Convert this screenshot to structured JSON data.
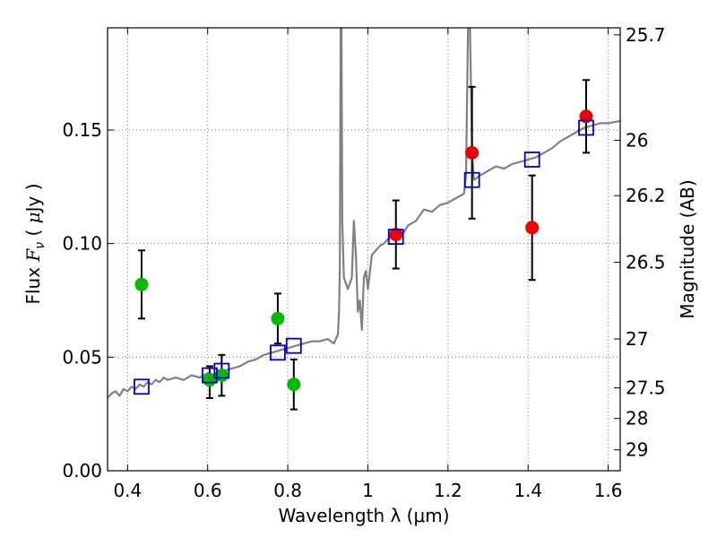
{
  "chart_data": {
    "type": "scatter",
    "xlabel": "Wavelength  λ (μm)",
    "ylabel": "Flux  F_ν  ( μJy )",
    "ylabel_right": "Magnitude (AB)",
    "xlim": [
      0.35,
      1.63
    ],
    "ylim": [
      0.0,
      0.195
    ],
    "grid": true,
    "x_ticks": [
      0.4,
      0.6,
      0.8,
      1.0,
      1.2,
      1.4,
      1.6
    ],
    "x_tick_labels": [
      "0.4",
      "0.6",
      "0.8",
      "1",
      "1.2",
      "1.4",
      "1.6"
    ],
    "y_ticks": [
      0.0,
      0.05,
      0.1,
      0.15
    ],
    "y_tick_labels": [
      "0.00",
      "0.05",
      "0.10",
      "0.15"
    ],
    "right_ticks": [
      {
        "label": "25.7",
        "flux": 0.1919
      },
      {
        "label": "26",
        "flux": 0.1455
      },
      {
        "label": "26.2",
        "flux": 0.1211
      },
      {
        "label": "26.5",
        "flux": 0.0918
      },
      {
        "label": "27",
        "flux": 0.058
      },
      {
        "label": "27.5",
        "flux": 0.0365
      },
      {
        "label": "28",
        "flux": 0.023
      },
      {
        "label": "29",
        "flux": 0.0092
      }
    ],
    "colors": {
      "model": "#808080",
      "model_flux_marker": "#0000cc",
      "green": "#00bb00",
      "red": "#ee0000",
      "errorbar": "#000000",
      "grid": "#777777"
    },
    "series": [
      {
        "marker": "circle",
        "color": "#00bb00",
        "points": [
          {
            "x": 0.435,
            "y": 0.082,
            "yerr": [
              0.015,
              0.015
            ]
          },
          {
            "x": 0.605,
            "y": 0.04,
            "yerr": [
              0.008,
              0.006
            ]
          },
          {
            "x": 0.635,
            "y": 0.042,
            "yerr": [
              0.009,
              0.009
            ]
          },
          {
            "x": 0.775,
            "y": 0.067,
            "yerr": [
              0.011,
              0.011
            ]
          },
          {
            "x": 0.815,
            "y": 0.038,
            "yerr": [
              0.011,
              0.011
            ]
          }
        ]
      },
      {
        "marker": "circle",
        "color": "#ee0000",
        "points": [
          {
            "x": 1.07,
            "y": 0.104,
            "yerr": [
              0.015,
              0.015
            ]
          },
          {
            "x": 1.26,
            "y": 0.14,
            "yerr": [
              0.029,
              0.029
            ]
          },
          {
            "x": 1.41,
            "y": 0.107,
            "yerr": [
              0.023,
              0.023
            ]
          },
          {
            "x": 1.545,
            "y": 0.156,
            "yerr": [
              0.016,
              0.016
            ]
          }
        ]
      },
      {
        "marker": "square",
        "color": "#0000cc",
        "points": [
          {
            "x": 0.435,
            "y": 0.037
          },
          {
            "x": 0.605,
            "y": 0.042
          },
          {
            "x": 0.635,
            "y": 0.044
          },
          {
            "x": 0.775,
            "y": 0.052
          },
          {
            "x": 0.815,
            "y": 0.055
          },
          {
            "x": 1.07,
            "y": 0.103
          },
          {
            "x": 1.26,
            "y": 0.128
          },
          {
            "x": 1.41,
            "y": 0.137
          },
          {
            "x": 1.545,
            "y": 0.151
          }
        ]
      },
      {
        "type": "line",
        "color": "#808080",
        "points": [
          [
            0.35,
            0.032
          ],
          [
            0.36,
            0.034
          ],
          [
            0.37,
            0.035
          ],
          [
            0.38,
            0.033
          ],
          [
            0.39,
            0.036
          ],
          [
            0.4,
            0.035
          ],
          [
            0.41,
            0.037
          ],
          [
            0.42,
            0.036
          ],
          [
            0.43,
            0.038
          ],
          [
            0.44,
            0.037
          ],
          [
            0.45,
            0.039
          ],
          [
            0.46,
            0.038
          ],
          [
            0.47,
            0.04
          ],
          [
            0.48,
            0.039
          ],
          [
            0.49,
            0.041
          ],
          [
            0.5,
            0.04
          ],
          [
            0.52,
            0.041
          ],
          [
            0.54,
            0.04
          ],
          [
            0.56,
            0.042
          ],
          [
            0.58,
            0.041
          ],
          [
            0.6,
            0.043
          ],
          [
            0.62,
            0.042
          ],
          [
            0.64,
            0.044
          ],
          [
            0.66,
            0.045
          ],
          [
            0.68,
            0.046
          ],
          [
            0.7,
            0.048
          ],
          [
            0.72,
            0.049
          ],
          [
            0.74,
            0.051
          ],
          [
            0.76,
            0.052
          ],
          [
            0.78,
            0.053
          ],
          [
            0.8,
            0.054
          ],
          [
            0.82,
            0.055
          ],
          [
            0.84,
            0.056
          ],
          [
            0.86,
            0.057
          ],
          [
            0.88,
            0.057
          ],
          [
            0.9,
            0.058
          ],
          [
            0.915,
            0.056
          ],
          [
            0.925,
            0.06
          ],
          [
            0.928,
            0.07
          ],
          [
            0.93,
            0.09
          ],
          [
            0.932,
            0.195
          ],
          [
            0.934,
            0.195
          ],
          [
            0.936,
            0.11
          ],
          [
            0.94,
            0.085
          ],
          [
            0.95,
            0.08
          ],
          [
            0.96,
            0.085
          ],
          [
            0.965,
            0.11
          ],
          [
            0.97,
            0.095
          ],
          [
            0.975,
            0.07
          ],
          [
            0.98,
            0.075
          ],
          [
            0.985,
            0.062
          ],
          [
            0.99,
            0.085
          ],
          [
            0.995,
            0.088
          ],
          [
            1.0,
            0.08
          ],
          [
            1.01,
            0.095
          ],
          [
            1.02,
            0.097
          ],
          [
            1.03,
            0.099
          ],
          [
            1.04,
            0.1
          ],
          [
            1.05,
            0.102
          ],
          [
            1.06,
            0.103
          ],
          [
            1.07,
            0.104
          ],
          [
            1.08,
            0.104
          ],
          [
            1.09,
            0.105
          ],
          [
            1.1,
            0.108
          ],
          [
            1.12,
            0.11
          ],
          [
            1.14,
            0.115
          ],
          [
            1.16,
            0.114
          ],
          [
            1.18,
            0.117
          ],
          [
            1.2,
            0.118
          ],
          [
            1.22,
            0.12
          ],
          [
            1.24,
            0.122
          ],
          [
            1.245,
            0.13
          ],
          [
            1.25,
            0.195
          ],
          [
            1.255,
            0.195
          ],
          [
            1.26,
            0.14
          ],
          [
            1.265,
            0.128
          ],
          [
            1.28,
            0.13
          ],
          [
            1.3,
            0.132
          ],
          [
            1.32,
            0.134
          ],
          [
            1.34,
            0.133
          ],
          [
            1.36,
            0.135
          ],
          [
            1.38,
            0.136
          ],
          [
            1.4,
            0.137
          ],
          [
            1.42,
            0.138
          ],
          [
            1.44,
            0.14
          ],
          [
            1.46,
            0.142
          ],
          [
            1.48,
            0.145
          ],
          [
            1.5,
            0.147
          ],
          [
            1.52,
            0.149
          ],
          [
            1.54,
            0.151
          ],
          [
            1.56,
            0.152
          ],
          [
            1.58,
            0.153
          ],
          [
            1.6,
            0.153
          ],
          [
            1.63,
            0.154
          ]
        ]
      }
    ]
  }
}
